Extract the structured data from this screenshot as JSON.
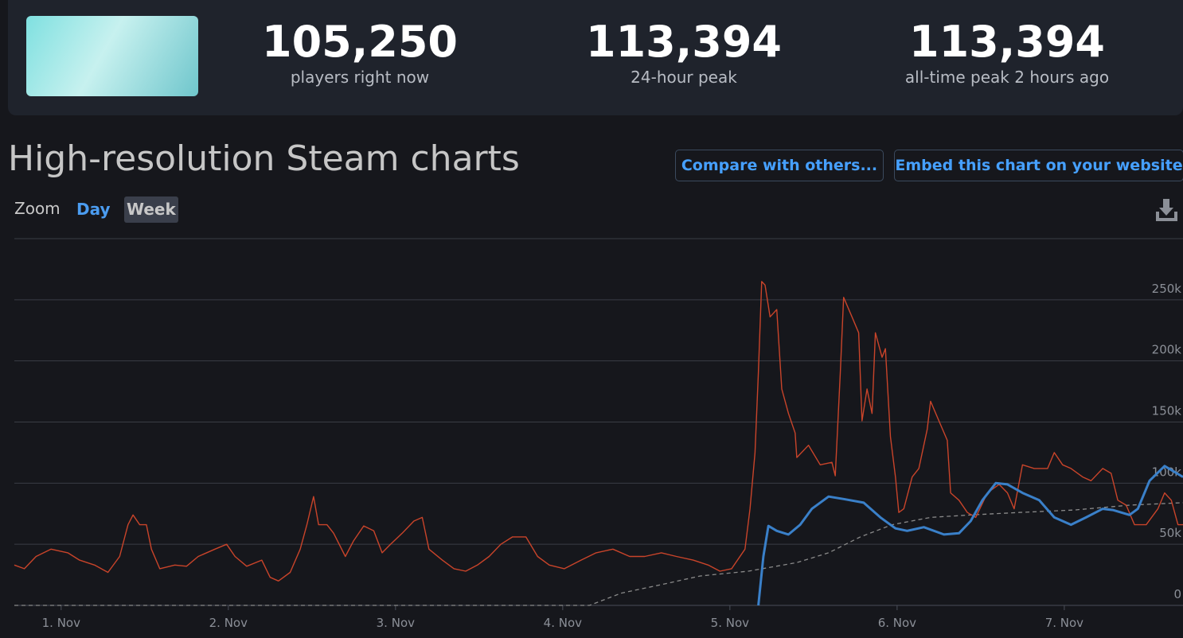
{
  "header": {
    "stats": [
      {
        "value": "105,250",
        "label": "players right now"
      },
      {
        "value": "113,394",
        "label": "24-hour peak"
      },
      {
        "value": "113,394",
        "label": "all-time peak 2 hours ago"
      }
    ]
  },
  "section": {
    "title": "High-resolution Steam charts",
    "buttons": [
      "Compare with others...",
      "Embed this chart on your website"
    ],
    "zoom": {
      "label": "Zoom",
      "options": [
        "Day",
        "Week"
      ]
    }
  },
  "chart_data": {
    "type": "line",
    "xlim": [
      -0.28,
      6.71
    ],
    "ylim": [
      0,
      300000
    ],
    "xticks": [
      {
        "value": 0,
        "label": "1. Nov"
      },
      {
        "value": 1,
        "label": "2. Nov"
      },
      {
        "value": 2,
        "label": "3. Nov"
      },
      {
        "value": 3,
        "label": "4. Nov"
      },
      {
        "value": 4,
        "label": "5. Nov"
      },
      {
        "value": 5,
        "label": "6. Nov"
      },
      {
        "value": 6,
        "label": "7. Nov"
      }
    ],
    "yticks": [
      0,
      {
        "value": 50000,
        "label": "50k"
      },
      {
        "value": 100000,
        "label": "100k"
      },
      {
        "value": 150000,
        "label": "150k"
      },
      {
        "value": 200000,
        "label": "200k"
      },
      {
        "value": 250000,
        "label": "250k"
      }
    ],
    "grid": true,
    "series": [
      {
        "color": "#c9442a",
        "dash": false,
        "x": [
          -0.28,
          -0.22,
          -0.15,
          -0.06,
          0.04,
          0.11,
          0.2,
          0.28,
          0.35,
          0.4,
          0.43,
          0.47,
          0.51,
          0.54,
          0.59,
          0.68,
          0.75,
          0.82,
          0.92,
          0.99,
          1.04,
          1.11,
          1.2,
          1.25,
          1.3,
          1.37,
          1.43,
          1.47,
          1.51,
          1.54,
          1.59,
          1.63,
          1.7,
          1.75,
          1.81,
          1.87,
          1.92,
          1.97,
          2.04,
          2.11,
          2.16,
          2.2,
          2.28,
          2.35,
          2.42,
          2.49,
          2.56,
          2.63,
          2.7,
          2.78,
          2.85,
          2.92,
          3.01,
          3.11,
          3.2,
          3.3,
          3.4,
          3.49,
          3.59,
          3.68,
          3.78,
          3.87,
          3.94,
          4.01,
          4.09,
          4.12,
          4.15,
          4.17,
          4.19,
          4.21,
          4.24,
          4.28,
          4.31,
          4.35,
          4.39,
          4.4,
          4.47,
          4.54,
          4.61,
          4.63,
          4.66,
          4.68,
          4.73,
          4.77,
          4.79,
          4.82,
          4.85,
          4.87,
          4.91,
          4.93,
          4.96,
          4.99,
          5.01,
          5.04,
          5.09,
          5.13,
          5.18,
          5.2,
          5.25,
          5.3,
          5.32,
          5.37,
          5.42,
          5.47,
          5.54,
          5.61,
          5.66,
          5.7,
          5.75,
          5.82,
          5.9,
          5.94,
          5.99,
          6.04,
          6.11,
          6.16,
          6.23,
          6.28,
          6.32,
          6.37,
          6.42,
          6.49,
          6.56,
          6.6,
          6.64,
          6.68,
          6.71
        ],
        "values": [
          33000,
          30000,
          40000,
          46000,
          43000,
          37000,
          33000,
          27000,
          40000,
          66000,
          74000,
          66000,
          66000,
          46000,
          30000,
          33000,
          32000,
          40000,
          46000,
          50000,
          40000,
          32000,
          37000,
          23000,
          20000,
          27000,
          46000,
          66000,
          89000,
          66000,
          66000,
          59000,
          40000,
          53000,
          65000,
          61000,
          43000,
          50000,
          59000,
          69000,
          72000,
          46000,
          37000,
          30000,
          28000,
          33000,
          40000,
          50000,
          56000,
          56000,
          40000,
          33000,
          30000,
          37000,
          43000,
          46000,
          40000,
          40000,
          43000,
          40000,
          37000,
          33000,
          28000,
          30000,
          46000,
          79000,
          125000,
          190000,
          265000,
          262000,
          236000,
          242000,
          177000,
          157000,
          141000,
          121000,
          131000,
          115000,
          117000,
          106000,
          190000,
          252000,
          236000,
          223000,
          151000,
          177000,
          157000,
          223000,
          203000,
          210000,
          138000,
          105000,
          76000,
          79000,
          105000,
          112000,
          144000,
          167000,
          151000,
          135000,
          92000,
          86000,
          76000,
          72000,
          92000,
          99000,
          92000,
          79000,
          115000,
          112000,
          112000,
          125000,
          115000,
          112000,
          105000,
          102000,
          112000,
          108000,
          86000,
          82000,
          66000,
          66000,
          79000,
          92000,
          86000,
          66000,
          66000
        ]
      },
      {
        "color": "#3a80c9",
        "dash": false,
        "x": [
          4.17,
          4.2,
          4.23,
          4.28,
          4.35,
          4.42,
          4.49,
          4.59,
          4.68,
          4.8,
          4.9,
          4.99,
          5.06,
          5.16,
          5.28,
          5.37,
          5.44,
          5.51,
          5.59,
          5.66,
          5.75,
          5.85,
          5.94,
          6.04,
          6.13,
          6.23,
          6.29,
          6.39,
          6.44,
          6.51,
          6.6,
          6.71
        ],
        "values": [
          0,
          40000,
          65000,
          61000,
          58000,
          66000,
          79000,
          89000,
          87000,
          84000,
          72000,
          63000,
          61000,
          64000,
          58000,
          59000,
          69000,
          86000,
          100000,
          99000,
          92000,
          86000,
          72000,
          66000,
          72000,
          79000,
          78000,
          74000,
          79000,
          102000,
          114000,
          105000
        ]
      },
      {
        "color": "#8a8a8a",
        "dash": true,
        "x": [
          -0.28,
          3.16,
          3.35,
          3.59,
          3.82,
          4.11,
          4.4,
          4.59,
          4.78,
          4.97,
          5.2,
          5.44,
          5.73,
          6.06,
          6.39,
          6.71
        ],
        "values": [
          0,
          0,
          10000,
          17000,
          24000,
          28000,
          35000,
          43000,
          56000,
          66000,
          72000,
          74000,
          76000,
          78000,
          82000,
          84000
        ]
      }
    ]
  }
}
